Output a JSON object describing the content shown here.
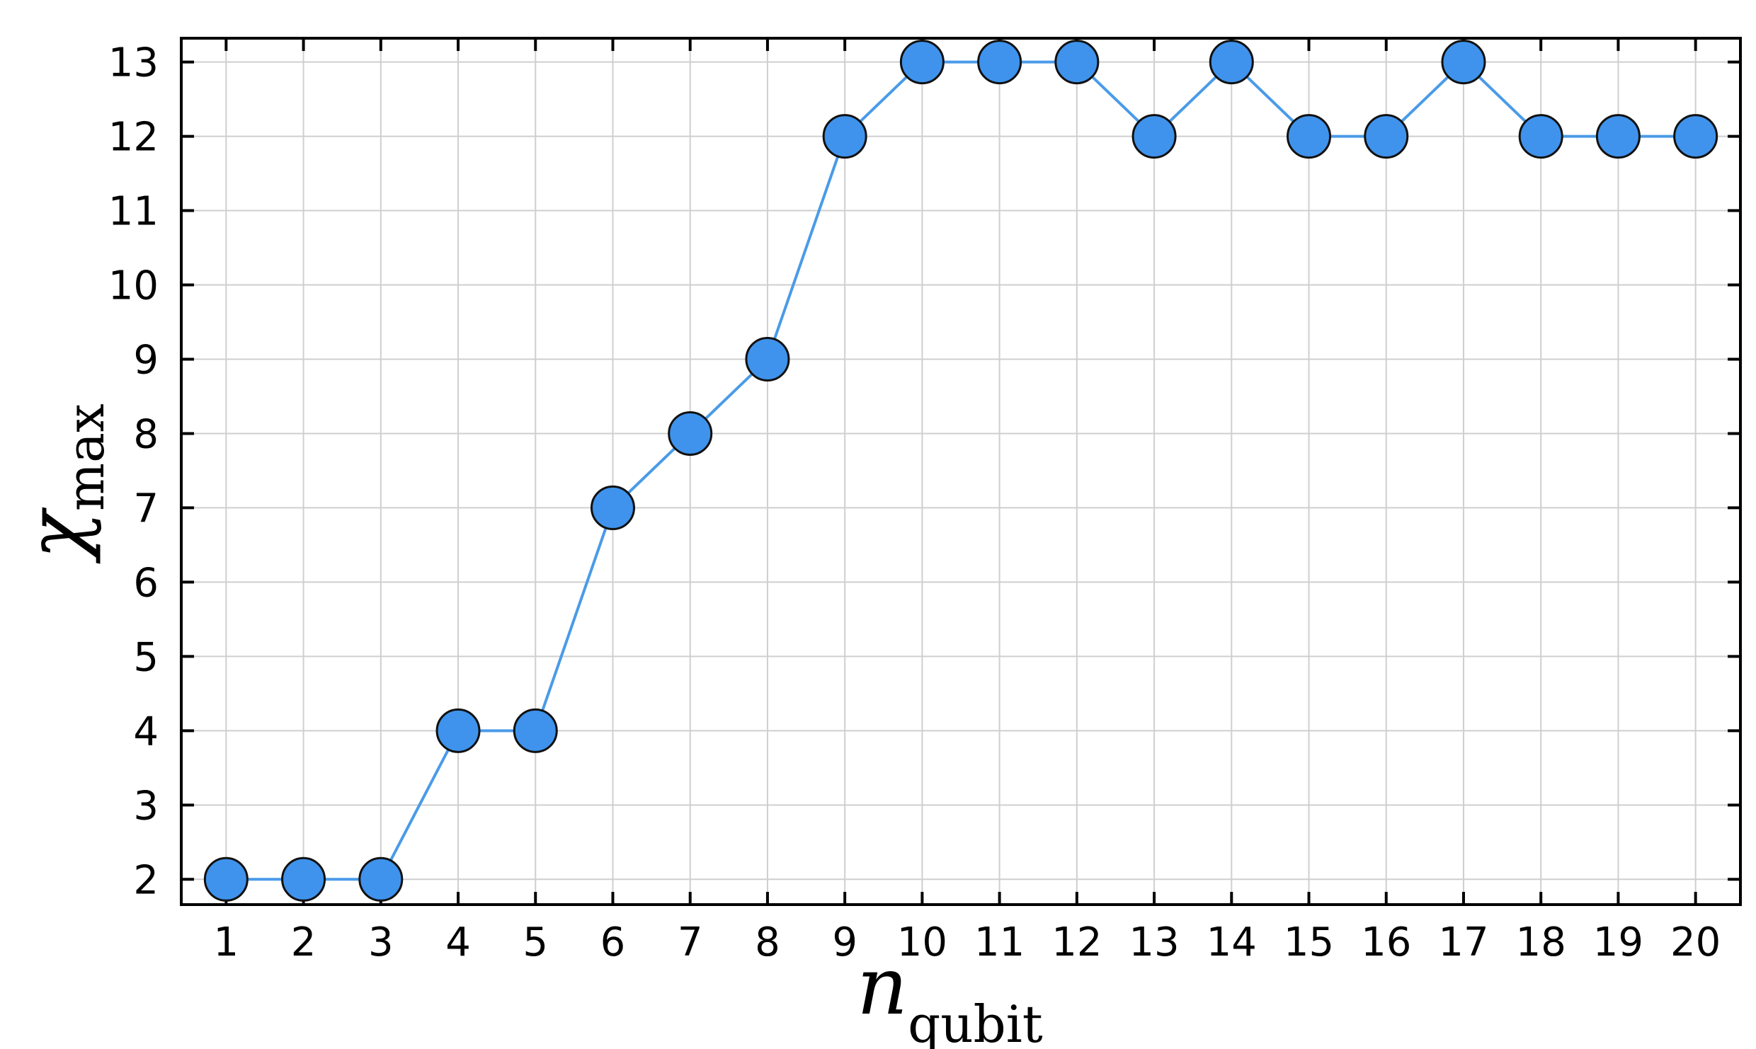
{
  "chart_data": {
    "type": "line",
    "xlabel": "n",
    "xlabel_sub": "qubit",
    "ylabel": "χ",
    "ylabel_sub": "max",
    "xlim": [
      0.42,
      20.58
    ],
    "ylim": [
      1.66,
      13.32
    ],
    "x_ticks": [
      1,
      2,
      3,
      4,
      5,
      6,
      7,
      8,
      9,
      10,
      11,
      12,
      13,
      14,
      15,
      16,
      17,
      18,
      19,
      20
    ],
    "y_ticks": [
      2,
      3,
      4,
      5,
      6,
      7,
      8,
      9,
      10,
      11,
      12,
      13
    ],
    "grid": true,
    "series": [
      {
        "x": [
          1,
          2,
          3,
          4,
          5,
          6,
          7,
          8,
          9,
          10,
          11,
          12,
          13,
          14,
          15,
          16,
          17,
          18,
          19,
          20
        ],
        "y": [
          2,
          2,
          2,
          4,
          4,
          7,
          8,
          9,
          12,
          13,
          13,
          13,
          12,
          13,
          12,
          12,
          13,
          12,
          12,
          12
        ],
        "marker": "circle",
        "color": "#3f93ec"
      }
    ],
    "colors": {
      "line": "#4a9be8",
      "marker_fill": "#3f93ec",
      "marker_edge": "#111111"
    }
  }
}
